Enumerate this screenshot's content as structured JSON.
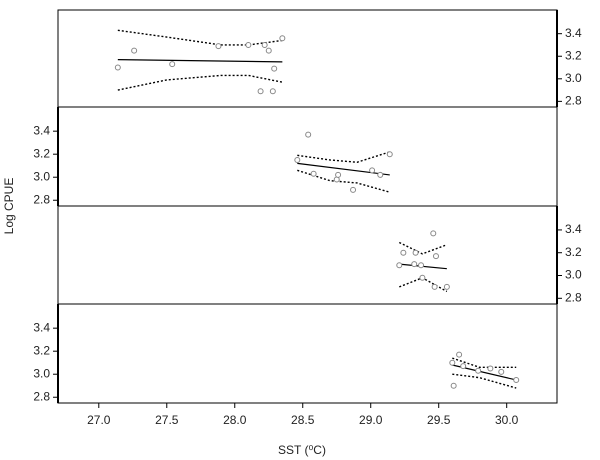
{
  "figure": {
    "xlabel": "SST (⁰C)",
    "ylabel": "Log CPUE"
  },
  "chart_data": [
    {
      "type": "scatter",
      "yaxis_side": "right",
      "x": [
        27.14,
        27.26,
        27.54,
        27.88,
        28.1,
        28.22,
        28.25,
        28.35,
        28.29,
        28.19,
        28.28
      ],
      "y": [
        3.1,
        3.25,
        3.13,
        3.29,
        3.3,
        3.3,
        3.25,
        3.36,
        3.09,
        2.89,
        2.89
      ],
      "fit": {
        "x": [
          27.14,
          28.35
        ],
        "y": [
          3.17,
          3.15
        ]
      },
      "upper": {
        "x": [
          27.14,
          27.5,
          27.9,
          28.1,
          28.35
        ],
        "y": [
          3.43,
          3.37,
          3.3,
          3.3,
          3.34
        ]
      },
      "lower": {
        "x": [
          27.14,
          27.5,
          27.9,
          28.1,
          28.35
        ],
        "y": [
          2.9,
          2.99,
          3.03,
          3.03,
          2.97
        ]
      },
      "xlim": [
        26.7,
        30.37
      ],
      "ylim": [
        2.75,
        3.61
      ],
      "yticks": [
        {
          "value": 3.4,
          "label": "3.4"
        },
        {
          "value": 3.2,
          "label": "3.2"
        },
        {
          "value": 3.0,
          "label": "3.0"
        },
        {
          "value": 2.8,
          "label": "2.8"
        }
      ]
    },
    {
      "type": "scatter",
      "yaxis_side": "left",
      "x": [
        28.46,
        28.54,
        28.58,
        28.75,
        28.76,
        28.87,
        29.01,
        29.07,
        29.14
      ],
      "y": [
        3.15,
        3.37,
        3.03,
        2.98,
        3.02,
        2.89,
        3.06,
        3.02,
        3.2
      ],
      "fit": {
        "x": [
          28.46,
          29.14
        ],
        "y": [
          3.12,
          3.02
        ]
      },
      "upper": {
        "x": [
          28.46,
          28.7,
          28.9,
          29.14
        ],
        "y": [
          3.19,
          3.15,
          3.13,
          3.22
        ]
      },
      "lower": {
        "x": [
          28.46,
          28.7,
          28.9,
          29.14
        ],
        "y": [
          3.06,
          2.97,
          2.95,
          2.87
        ]
      },
      "xlim": [
        26.7,
        30.37
      ],
      "ylim": [
        2.75,
        3.61
      ],
      "yticks": [
        {
          "value": 3.4,
          "label": "3.4"
        },
        {
          "value": 3.2,
          "label": "3.2"
        },
        {
          "value": 3.0,
          "label": "3.0"
        },
        {
          "value": 2.8,
          "label": "2.8"
        }
      ]
    },
    {
      "type": "scatter",
      "yaxis_side": "right",
      "x": [
        29.46,
        29.24,
        29.33,
        29.48,
        29.21,
        29.32,
        29.37,
        29.38,
        29.47,
        29.56
      ],
      "y": [
        3.37,
        3.2,
        3.2,
        3.17,
        3.09,
        3.1,
        3.09,
        2.98,
        2.9,
        2.9
      ],
      "fit": {
        "x": [
          29.21,
          29.56
        ],
        "y": [
          3.1,
          3.06
        ]
      },
      "upper": {
        "x": [
          29.21,
          29.38,
          29.56
        ],
        "y": [
          3.29,
          3.19,
          3.27
        ]
      },
      "lower": {
        "x": [
          29.21,
          29.38,
          29.56
        ],
        "y": [
          2.9,
          2.98,
          2.86
        ]
      },
      "xlim": [
        26.7,
        30.37
      ],
      "ylim": [
        2.75,
        3.61
      ],
      "yticks": [
        {
          "value": 3.4,
          "label": "3.4"
        },
        {
          "value": 3.2,
          "label": "3.2"
        },
        {
          "value": 3.0,
          "label": "3.0"
        },
        {
          "value": 2.8,
          "label": "2.8"
        }
      ]
    },
    {
      "type": "scatter",
      "yaxis_side": "left",
      "x": [
        29.6,
        29.65,
        29.61,
        29.68,
        29.79,
        29.88,
        29.96,
        30.07
      ],
      "y": [
        3.1,
        3.17,
        2.9,
        3.07,
        3.03,
        3.05,
        3.02,
        2.95
      ],
      "fit": {
        "x": [
          29.6,
          30.07
        ],
        "y": [
          3.08,
          2.95
        ]
      },
      "upper": {
        "x": [
          29.6,
          29.8,
          30.07
        ],
        "y": [
          3.14,
          3.06,
          3.06
        ]
      },
      "lower": {
        "x": [
          29.6,
          29.8,
          30.07
        ],
        "y": [
          3.0,
          2.97,
          2.88
        ]
      },
      "xlim": [
        26.7,
        30.37
      ],
      "ylim": [
        2.75,
        3.61
      ],
      "yticks": [
        {
          "value": 3.4,
          "label": "3.4"
        },
        {
          "value": 3.2,
          "label": "3.2"
        },
        {
          "value": 3.0,
          "label": "3.0"
        },
        {
          "value": 2.8,
          "label": "2.8"
        }
      ],
      "xticks": [
        {
          "value": 27.0,
          "label": "27.0"
        },
        {
          "value": 27.5,
          "label": "27.5"
        },
        {
          "value": 28.0,
          "label": "28.0"
        },
        {
          "value": 28.5,
          "label": "28.5"
        },
        {
          "value": 29.0,
          "label": "29.0"
        },
        {
          "value": 29.5,
          "label": "29.5"
        },
        {
          "value": 30.0,
          "label": "30.0"
        }
      ]
    }
  ]
}
